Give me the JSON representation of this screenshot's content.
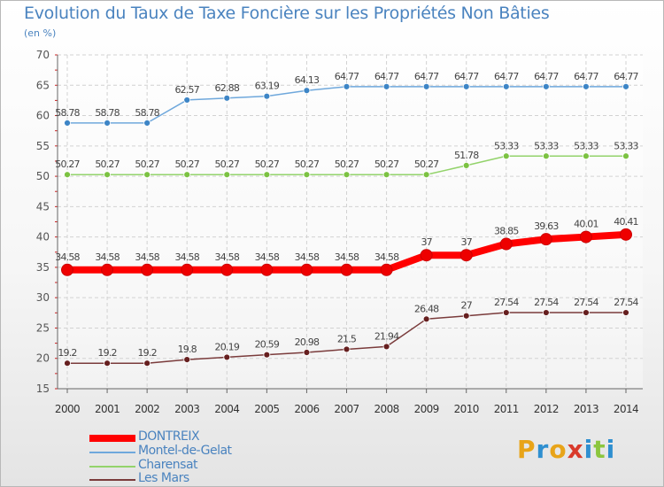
{
  "header": {
    "title": "Evolution du Taux de Taxe Foncière sur les Propriétés Non Bâties",
    "subtitle": "(en %)"
  },
  "logo": {
    "text": "Proxiti",
    "colors": [
      "#e8a419",
      "#2f8fd0",
      "#e8a419",
      "#d93a2b",
      "#2f8fd0",
      "#8cc63f",
      "#2f8fd0"
    ]
  },
  "chart_data": {
    "type": "line",
    "title": "Evolution du Taux de Taxe Foncière sur les Propriétés Non Bâties",
    "subtitle": "(en %)",
    "x": [
      "2000",
      "2001",
      "2002",
      "2003",
      "2004",
      "2005",
      "2006",
      "2007",
      "2008",
      "2009",
      "2010",
      "2011",
      "2012",
      "2013",
      "2014"
    ],
    "ylim": [
      15,
      70
    ],
    "yticks": [
      15,
      20,
      25,
      30,
      35,
      40,
      45,
      50,
      55,
      60,
      65,
      70
    ],
    "grid": true,
    "legend_position": "bottom-left",
    "series": [
      {
        "name": "DONTREIX",
        "color": "#ff0000",
        "emphasis": true,
        "values": [
          34.58,
          34.58,
          34.58,
          34.58,
          34.58,
          34.58,
          34.58,
          34.58,
          34.58,
          37,
          37,
          38.85,
          39.63,
          40.01,
          40.41
        ],
        "labels": [
          "34.58",
          "34.58",
          "34.58",
          "34.58",
          "34.58",
          "34.58",
          "34.58",
          "34.58",
          "34.58",
          "37",
          "37",
          "38.85",
          "39.63",
          "40.01",
          "40.41"
        ]
      },
      {
        "name": "Montel-de-Gelat",
        "color": "#6fa8dc",
        "marker": "#3d85c6",
        "values": [
          58.78,
          58.78,
          58.78,
          62.57,
          62.88,
          63.19,
          64.13,
          64.77,
          64.77,
          64.77,
          64.77,
          64.77,
          64.77,
          64.77,
          64.77
        ],
        "labels": [
          "58.78",
          "58.78",
          "58.78",
          "62.57",
          "62.88",
          "63.19",
          "64.13",
          "64.77",
          "64.77",
          "64.77",
          "64.77",
          "64.77",
          "64.77",
          "64.77",
          "64.77"
        ]
      },
      {
        "name": "Charensat",
        "color": "#93d36b",
        "marker": "#7cc242",
        "values": [
          50.27,
          50.27,
          50.27,
          50.27,
          50.27,
          50.27,
          50.27,
          50.27,
          50.27,
          50.27,
          51.78,
          53.33,
          53.33,
          53.33,
          53.33
        ],
        "labels": [
          "50.27",
          "50.27",
          "50.27",
          "50.27",
          "50.27",
          "50.27",
          "50.27",
          "50.27",
          "50.27",
          "50.27",
          "51.78",
          "53.33",
          "53.33",
          "53.33",
          "53.33"
        ]
      },
      {
        "name": "Les Mars",
        "color": "#7a3b3b",
        "marker": "#661f1f",
        "values": [
          19.2,
          19.2,
          19.2,
          19.8,
          20.19,
          20.59,
          20.98,
          21.5,
          21.94,
          26.48,
          27,
          27.54,
          27.54,
          27.54,
          27.54
        ],
        "labels": [
          "19.2",
          "19.2",
          "19.2",
          "19.8",
          "20.19",
          "20.59",
          "20.98",
          "21.5",
          "21.94",
          "26.48",
          "27",
          "27.54",
          "27.54",
          "27.54",
          "27.54"
        ]
      }
    ]
  }
}
